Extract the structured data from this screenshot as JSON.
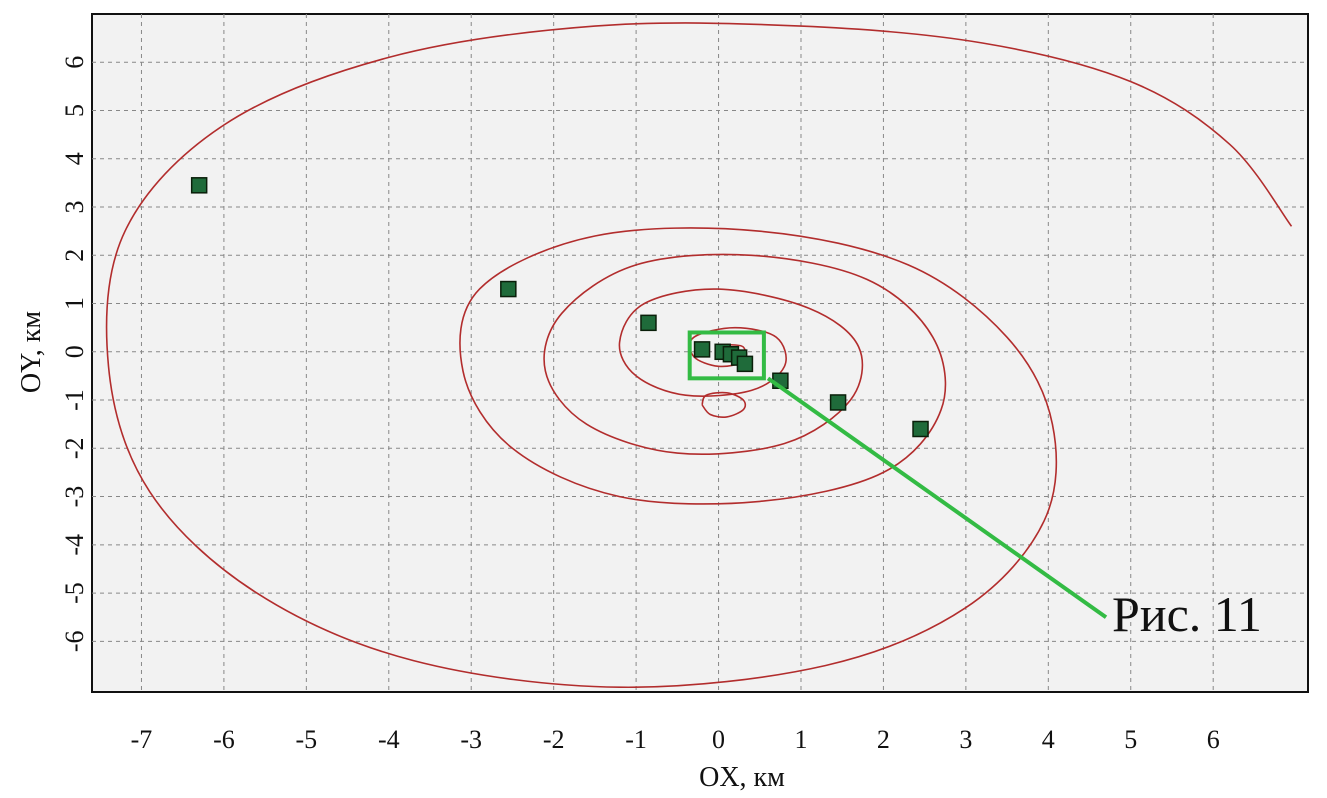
{
  "chart_data": {
    "type": "line",
    "xlabel": "OX, км",
    "ylabel": "OY, км",
    "xlim": [
      -7.6,
      7.15
    ],
    "ylim": [
      -7.05,
      7.0
    ],
    "x_ticks": [
      -7,
      -6,
      -5,
      -4,
      -3,
      -2,
      -1,
      0,
      1,
      2,
      3,
      4,
      5,
      6
    ],
    "y_ticks": [
      6,
      5,
      4,
      3,
      2,
      1,
      0,
      -1,
      -2,
      -3,
      -4,
      -5,
      -6
    ],
    "grid": true,
    "series": [
      {
        "style": "line",
        "color": "#b22d2d",
        "points": [
          [
            6.95,
            2.6
          ],
          [
            6.2,
            4.3
          ],
          [
            5.0,
            5.6
          ],
          [
            3.2,
            6.4
          ],
          [
            1.0,
            6.75
          ],
          [
            -1.5,
            6.75
          ],
          [
            -4.0,
            6.1
          ],
          [
            -6.0,
            4.7
          ],
          [
            -7.2,
            2.5
          ],
          [
            -7.4,
            -0.3
          ],
          [
            -6.9,
            -2.9
          ],
          [
            -5.6,
            -5.0
          ],
          [
            -3.7,
            -6.4
          ],
          [
            -1.2,
            -6.95
          ],
          [
            1.3,
            -6.5
          ],
          [
            3.0,
            -5.3
          ],
          [
            3.95,
            -3.5
          ],
          [
            4.05,
            -1.5
          ],
          [
            3.5,
            0.3
          ],
          [
            2.3,
            1.8
          ],
          [
            0.5,
            2.5
          ],
          [
            -1.5,
            2.4
          ],
          [
            -2.9,
            1.3
          ],
          [
            -3.1,
            -0.4
          ],
          [
            -2.5,
            -2.0
          ],
          [
            -1.2,
            -3.0
          ],
          [
            0.5,
            -3.1
          ],
          [
            2.0,
            -2.5
          ],
          [
            2.7,
            -1.2
          ],
          [
            2.6,
            0.3
          ],
          [
            1.8,
            1.5
          ],
          [
            0.4,
            2.0
          ],
          [
            -1.0,
            1.8
          ],
          [
            -1.9,
            0.8
          ],
          [
            -2.1,
            -0.4
          ],
          [
            -1.6,
            -1.5
          ],
          [
            -0.5,
            -2.1
          ],
          [
            0.8,
            -1.9
          ],
          [
            1.6,
            -1.0
          ],
          [
            1.7,
            0.1
          ],
          [
            1.1,
            0.9
          ],
          [
            0.0,
            1.3
          ],
          [
            -0.9,
            1.0
          ],
          [
            -1.2,
            0.2
          ],
          [
            -1.0,
            -0.5
          ],
          [
            -0.4,
            -0.9
          ],
          [
            0.4,
            -0.8
          ],
          [
            0.8,
            -0.3
          ],
          [
            0.7,
            0.3
          ],
          [
            0.2,
            0.5
          ],
          [
            -0.3,
            0.3
          ],
          [
            -0.3,
            -0.1
          ],
          [
            0.0,
            -0.3
          ],
          [
            0.3,
            -0.2
          ],
          [
            0.3,
            0.1
          ],
          [
            0.1,
            0.15
          ]
        ]
      },
      {
        "style": "line",
        "color": "#b22d2d",
        "points": [
          [
            -0.2,
            -1.1
          ],
          [
            -0.15,
            -0.9
          ],
          [
            0.1,
            -0.85
          ],
          [
            0.3,
            -1.0
          ],
          [
            0.3,
            -1.2
          ],
          [
            0.1,
            -1.35
          ],
          [
            -0.1,
            -1.3
          ],
          [
            -0.2,
            -1.1
          ]
        ]
      },
      {
        "style": "markers",
        "color": "#1f6b3a",
        "points": [
          [
            -6.3,
            3.45
          ],
          [
            -2.55,
            1.3
          ],
          [
            -0.85,
            0.6
          ],
          [
            -0.2,
            0.05
          ],
          [
            0.05,
            0.0
          ],
          [
            0.15,
            -0.05
          ],
          [
            0.25,
            -0.12
          ],
          [
            0.32,
            -0.25
          ],
          [
            0.75,
            -0.6
          ],
          [
            1.45,
            -1.05
          ],
          [
            2.45,
            -1.6
          ]
        ]
      }
    ],
    "annotation": {
      "text": "Рис. 11",
      "box_x": [
        -0.35,
        0.55
      ],
      "box_y": [
        -0.55,
        0.4
      ],
      "line_from": [
        0.6,
        -0.55
      ],
      "line_to": [
        4.7,
        -5.5
      ],
      "color": "#33bb44"
    }
  }
}
